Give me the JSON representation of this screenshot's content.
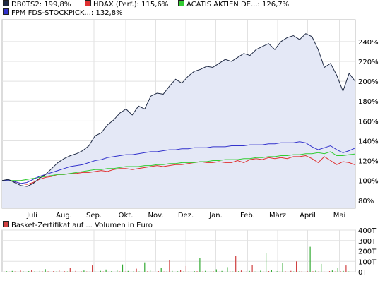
{
  "chart_data": [
    {
      "type": "line",
      "legend_placement": "top",
      "grid": true,
      "x_ticks": [
        "Juli",
        "Aug.",
        "Sep.",
        "Okt.",
        "Nov.",
        "Dez.",
        "Jan.",
        "Feb.",
        "März",
        "April",
        "Mai"
      ],
      "y_ticks": [
        "80%",
        "100%",
        "120%",
        "140%",
        "160%",
        "180%",
        "200%",
        "220%",
        "240%"
      ],
      "ylim": [
        72,
        262
      ],
      "series": [
        {
          "name": "DB0TS2: 199,8%",
          "color": "#1f2a44",
          "fill": "#e4e8f6",
          "values": [
            100,
            101,
            98,
            95,
            94,
            97,
            102,
            106,
            112,
            118,
            122,
            125,
            127,
            130,
            135,
            145,
            148,
            156,
            161,
            168,
            172,
            166,
            175,
            172,
            185,
            188,
            187,
            195,
            202,
            198,
            205,
            210,
            212,
            215,
            214,
            218,
            222,
            220,
            224,
            228,
            226,
            232,
            235,
            238,
            232,
            240,
            244,
            246,
            242,
            248,
            245,
            232,
            214,
            218,
            206,
            190,
            208,
            199.8
          ]
        },
        {
          "name": "HDAX (Perf.): 115,6%",
          "color": "#e03030",
          "values": [
            100,
            100,
            99,
            97,
            96,
            98,
            101,
            103,
            104,
            106,
            106,
            107,
            107,
            108,
            108,
            109,
            110,
            109,
            111,
            112,
            112,
            111,
            112,
            113,
            114,
            115,
            114,
            115,
            116,
            116,
            117,
            118,
            119,
            118,
            118,
            119,
            118,
            118,
            120,
            118,
            121,
            122,
            121,
            123,
            122,
            123,
            122,
            124,
            124,
            125,
            122,
            118,
            124,
            120,
            116,
            119,
            118,
            115.6
          ]
        },
        {
          "name": "ACATIS AKTIEN DE...: 126,7%",
          "color": "#33cc33",
          "values": [
            100,
            100,
            100,
            100,
            101,
            102,
            103,
            104,
            105,
            106,
            106,
            107,
            108,
            109,
            110,
            111,
            111,
            112,
            112,
            113,
            114,
            114,
            114,
            115,
            115,
            116,
            116,
            117,
            117,
            118,
            118,
            118,
            119,
            119,
            120,
            120,
            121,
            121,
            121,
            122,
            122,
            123,
            123,
            124,
            124,
            125,
            125,
            126,
            126,
            127,
            127,
            128,
            127,
            129,
            125,
            125,
            126,
            126.7
          ]
        },
        {
          "name": "FPM FDS-STOCKPICK...: 132,8%",
          "color": "#3333cc",
          "values": [
            100,
            100,
            99,
            97,
            98,
            101,
            104,
            106,
            108,
            110,
            112,
            114,
            115,
            116,
            118,
            120,
            121,
            123,
            124,
            125,
            126,
            126,
            127,
            128,
            129,
            129,
            130,
            131,
            131,
            132,
            132,
            133,
            133,
            133,
            134,
            134,
            134,
            135,
            135,
            135,
            136,
            136,
            136,
            137,
            137,
            138,
            138,
            138,
            139,
            138,
            134,
            131,
            133,
            135,
            131,
            128,
            130,
            132.8
          ]
        }
      ]
    },
    {
      "type": "bar",
      "legend_placement": "top",
      "grid": true,
      "y_ticks": [
        "0T",
        "100T",
        "200T",
        "300T",
        "400T"
      ],
      "ylim": [
        0,
        400
      ],
      "series": [
        {
          "name": "Basket-Zertifikat auf ... Volumen in Euro",
          "color": "#d04040",
          "values": [
            2,
            5,
            1,
            8,
            3,
            0,
            12,
            4,
            0,
            6,
            15,
            2,
            0,
            9,
            3,
            25,
            4,
            0,
            7,
            2,
            18,
            0,
            5,
            3,
            40,
            2,
            8,
            0,
            4,
            12,
            3,
            1,
            60,
            5,
            0,
            9,
            3,
            22,
            1,
            6,
            0,
            14,
            3,
            70,
            2,
            8,
            0,
            5,
            30,
            3,
            0,
            90,
            4,
            12,
            2,
            0,
            6,
            35,
            3,
            2,
            110,
            8,
            0,
            4,
            15,
            2,
            55,
            3,
            0,
            7,
            5,
            130,
            2,
            9,
            0,
            6,
            3,
            24,
            1,
            8,
            0,
            45,
            3,
            2,
            150,
            5,
            12,
            0,
            4,
            8,
            65,
            2,
            0,
            10,
            3,
            180,
            6,
            14,
            0,
            5,
            2,
            85,
            4,
            0,
            9,
            3,
            100,
            2,
            7,
            0,
            5,
            240,
            4,
            10,
            2,
            75,
            3,
            0,
            6,
            12,
            2,
            40,
            5,
            8,
            60,
            3,
            0
          ]
        }
      ]
    }
  ]
}
